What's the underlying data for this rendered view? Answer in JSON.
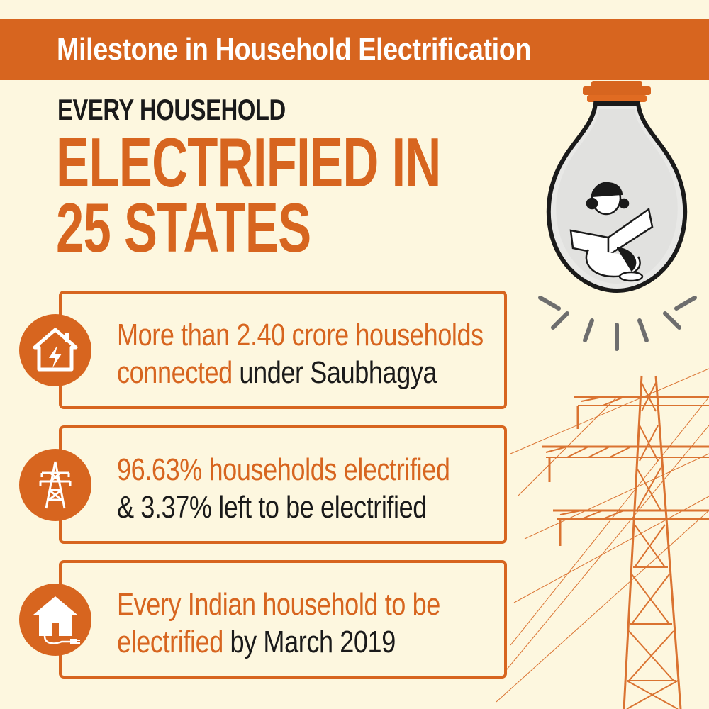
{
  "header": {
    "title": "Milestone in Household Electrification"
  },
  "headline": {
    "line1": "EVERY HOUSEHOLD",
    "line2": "ELECTRIFIED IN",
    "line3": "25 STATES"
  },
  "cards": [
    {
      "icon": "house-lightning-icon",
      "line1_highlight": "More than 2.40 crore households",
      "line2_highlight": "connected",
      "line2_rest": " under Saubhagya"
    },
    {
      "icon": "transmission-tower-icon",
      "line1_highlight": "96.63% households electrified",
      "line2_rest": "& 3.37% left to be electrified"
    },
    {
      "icon": "house-plug-icon",
      "line1_highlight": "Every Indian household to be",
      "line2_highlight": "electrified",
      "line2_rest": " by March 2019"
    }
  ],
  "colors": {
    "accent": "#d7651f",
    "background": "#fdf7df",
    "dark_text": "#1a1a1a",
    "bulb_glass": "#e8e8e6",
    "bulb_rays": "#6e6e6e"
  },
  "illustrations": [
    "light-bulb-illustration",
    "girl-reading-illustration",
    "power-pylon-illustration"
  ]
}
